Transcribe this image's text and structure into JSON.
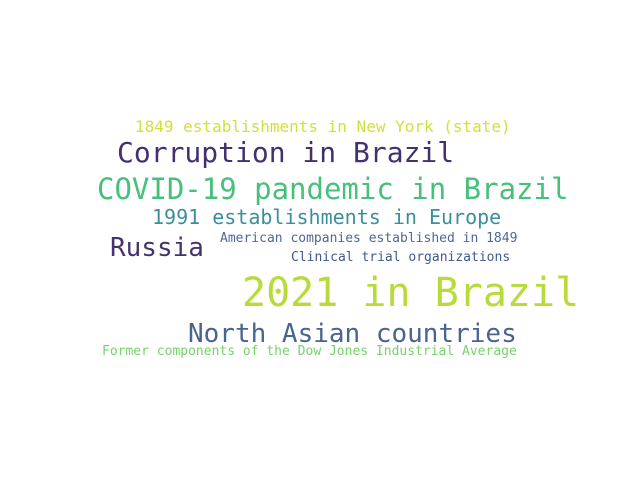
{
  "colors": {
    "background": "#ffffff",
    "words": {
      "w1": "#d4e03a",
      "w2": "#44306f",
      "w3": "#48c07d",
      "w4": "#3b8f9a",
      "w5": "#47326f",
      "w6": "#4e6796",
      "w7": "#3f5a93",
      "w8": "#b7dc3a",
      "w9": "#48648f",
      "w10": "#76d36a"
    }
  },
  "word_cloud": {
    "words": [
      {
        "text": "1849 establishments in New York (state)"
      },
      {
        "text": "Corruption in Brazil"
      },
      {
        "text": "COVID-19 pandemic in Brazil"
      },
      {
        "text": "1991 establishments in Europe"
      },
      {
        "text": "Russia"
      },
      {
        "text": "American companies established in 1849"
      },
      {
        "text": "Clinical trial organizations"
      },
      {
        "text": "2021 in Brazil"
      },
      {
        "text": "North Asian countries"
      },
      {
        "text": "Former components of the Dow Jones Industrial Average"
      }
    ]
  }
}
